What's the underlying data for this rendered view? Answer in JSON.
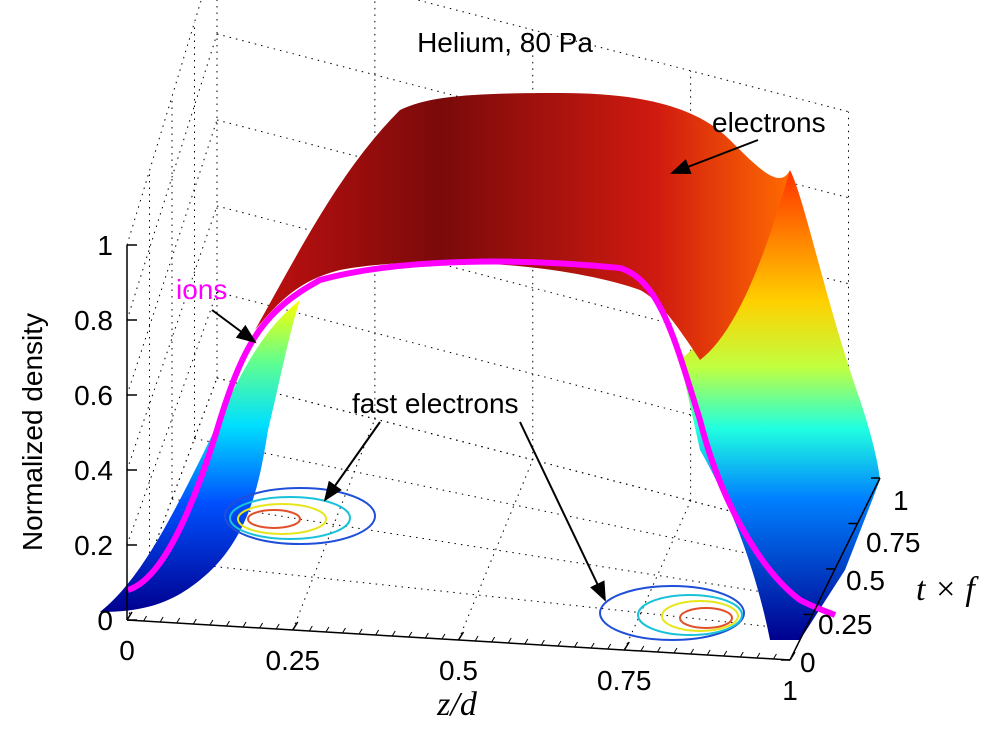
{
  "chart_data": {
    "type": "surface3d",
    "title": "Helium, 80 Pa",
    "xlabel": "z/d",
    "ylabel": "Normalized density",
    "tlabel": "t × f",
    "x_ticks": [
      "0",
      "0.25",
      "0.5",
      "0.75",
      "1"
    ],
    "y_ticks": [
      "0",
      "0.2",
      "0.4",
      "0.6",
      "0.8",
      "1"
    ],
    "t_ticks": [
      "0",
      "0.25",
      "0.5",
      "0.75",
      "1"
    ],
    "xlim": [
      0,
      1
    ],
    "ylim": [
      0,
      1
    ],
    "tlim": [
      0,
      1
    ],
    "grid": true,
    "series": [
      {
        "name": "electrons",
        "description": "time-averaged electron density surface",
        "z": [
          0.0,
          0.05,
          0.1,
          0.15,
          0.2,
          0.25,
          0.3,
          0.35,
          0.4,
          0.45,
          0.5,
          0.55,
          0.6,
          0.65,
          0.7,
          0.75,
          0.8,
          0.85,
          0.9,
          0.95,
          1.0
        ],
        "density": [
          0.0,
          0.03,
          0.12,
          0.33,
          0.62,
          0.84,
          0.95,
          0.99,
          1.0,
          1.0,
          1.0,
          1.0,
          1.0,
          0.99,
          0.95,
          0.84,
          0.62,
          0.33,
          0.12,
          0.03,
          0.0
        ]
      },
      {
        "name": "ions",
        "color": "#ff00ff",
        "z": [
          0.0,
          0.05,
          0.1,
          0.15,
          0.2,
          0.25,
          0.3,
          0.35,
          0.4,
          0.45,
          0.5,
          0.55,
          0.6,
          0.65,
          0.7,
          0.75,
          0.8,
          0.85,
          0.9,
          0.95,
          1.0
        ],
        "density": [
          0.07,
          0.1,
          0.2,
          0.42,
          0.7,
          0.88,
          0.95,
          0.98,
          0.99,
          1.0,
          1.0,
          1.0,
          0.99,
          0.98,
          0.95,
          0.88,
          0.7,
          0.42,
          0.2,
          0.1,
          0.07
        ]
      },
      {
        "name": "fast electrons",
        "description": "contours on the base plane near each electrode",
        "contour_colors": [
          "#1f4fd8",
          "#19c2d8",
          "#e6e61a",
          "#e0502a"
        ]
      }
    ],
    "annotations": [
      "electrons",
      "ions",
      "fast electrons"
    ]
  }
}
